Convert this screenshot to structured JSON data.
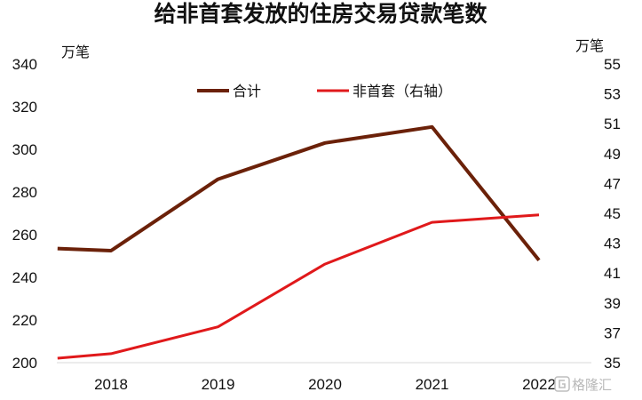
{
  "chart_data": {
    "type": "line",
    "title": "给非首套发放的住房交易贷款笔数",
    "y_left_unit": "万笔",
    "y_right_unit": "万笔",
    "x_tick_labels": [
      "2018",
      "2019",
      "2020",
      "2021",
      "2022"
    ],
    "x_start": 2017.5,
    "x": [
      2017.5,
      2018,
      2019,
      2020,
      2021,
      2022
    ],
    "y_left_range": [
      200,
      340
    ],
    "y_left_ticks": [
      200,
      220,
      240,
      260,
      280,
      300,
      320,
      340
    ],
    "y_right_range": [
      35,
      55
    ],
    "y_right_ticks": [
      35,
      37,
      39,
      41,
      43,
      45,
      47,
      49,
      51,
      53,
      55
    ],
    "series": [
      {
        "name": "合计",
        "axis": "left",
        "color": "#6b2109",
        "values": [
          253.5,
          252.5,
          286,
          303,
          310.5,
          248
        ]
      },
      {
        "name": "非首套（右轴）",
        "axis": "right",
        "color": "#e0191b",
        "values": [
          35.3,
          35.6,
          37.4,
          41.6,
          44.4,
          44.9
        ]
      }
    ],
    "legend_position": "top-center",
    "grid": false
  },
  "watermark": {
    "icon": "gelonghui-logo-icon",
    "text": "格隆汇"
  }
}
